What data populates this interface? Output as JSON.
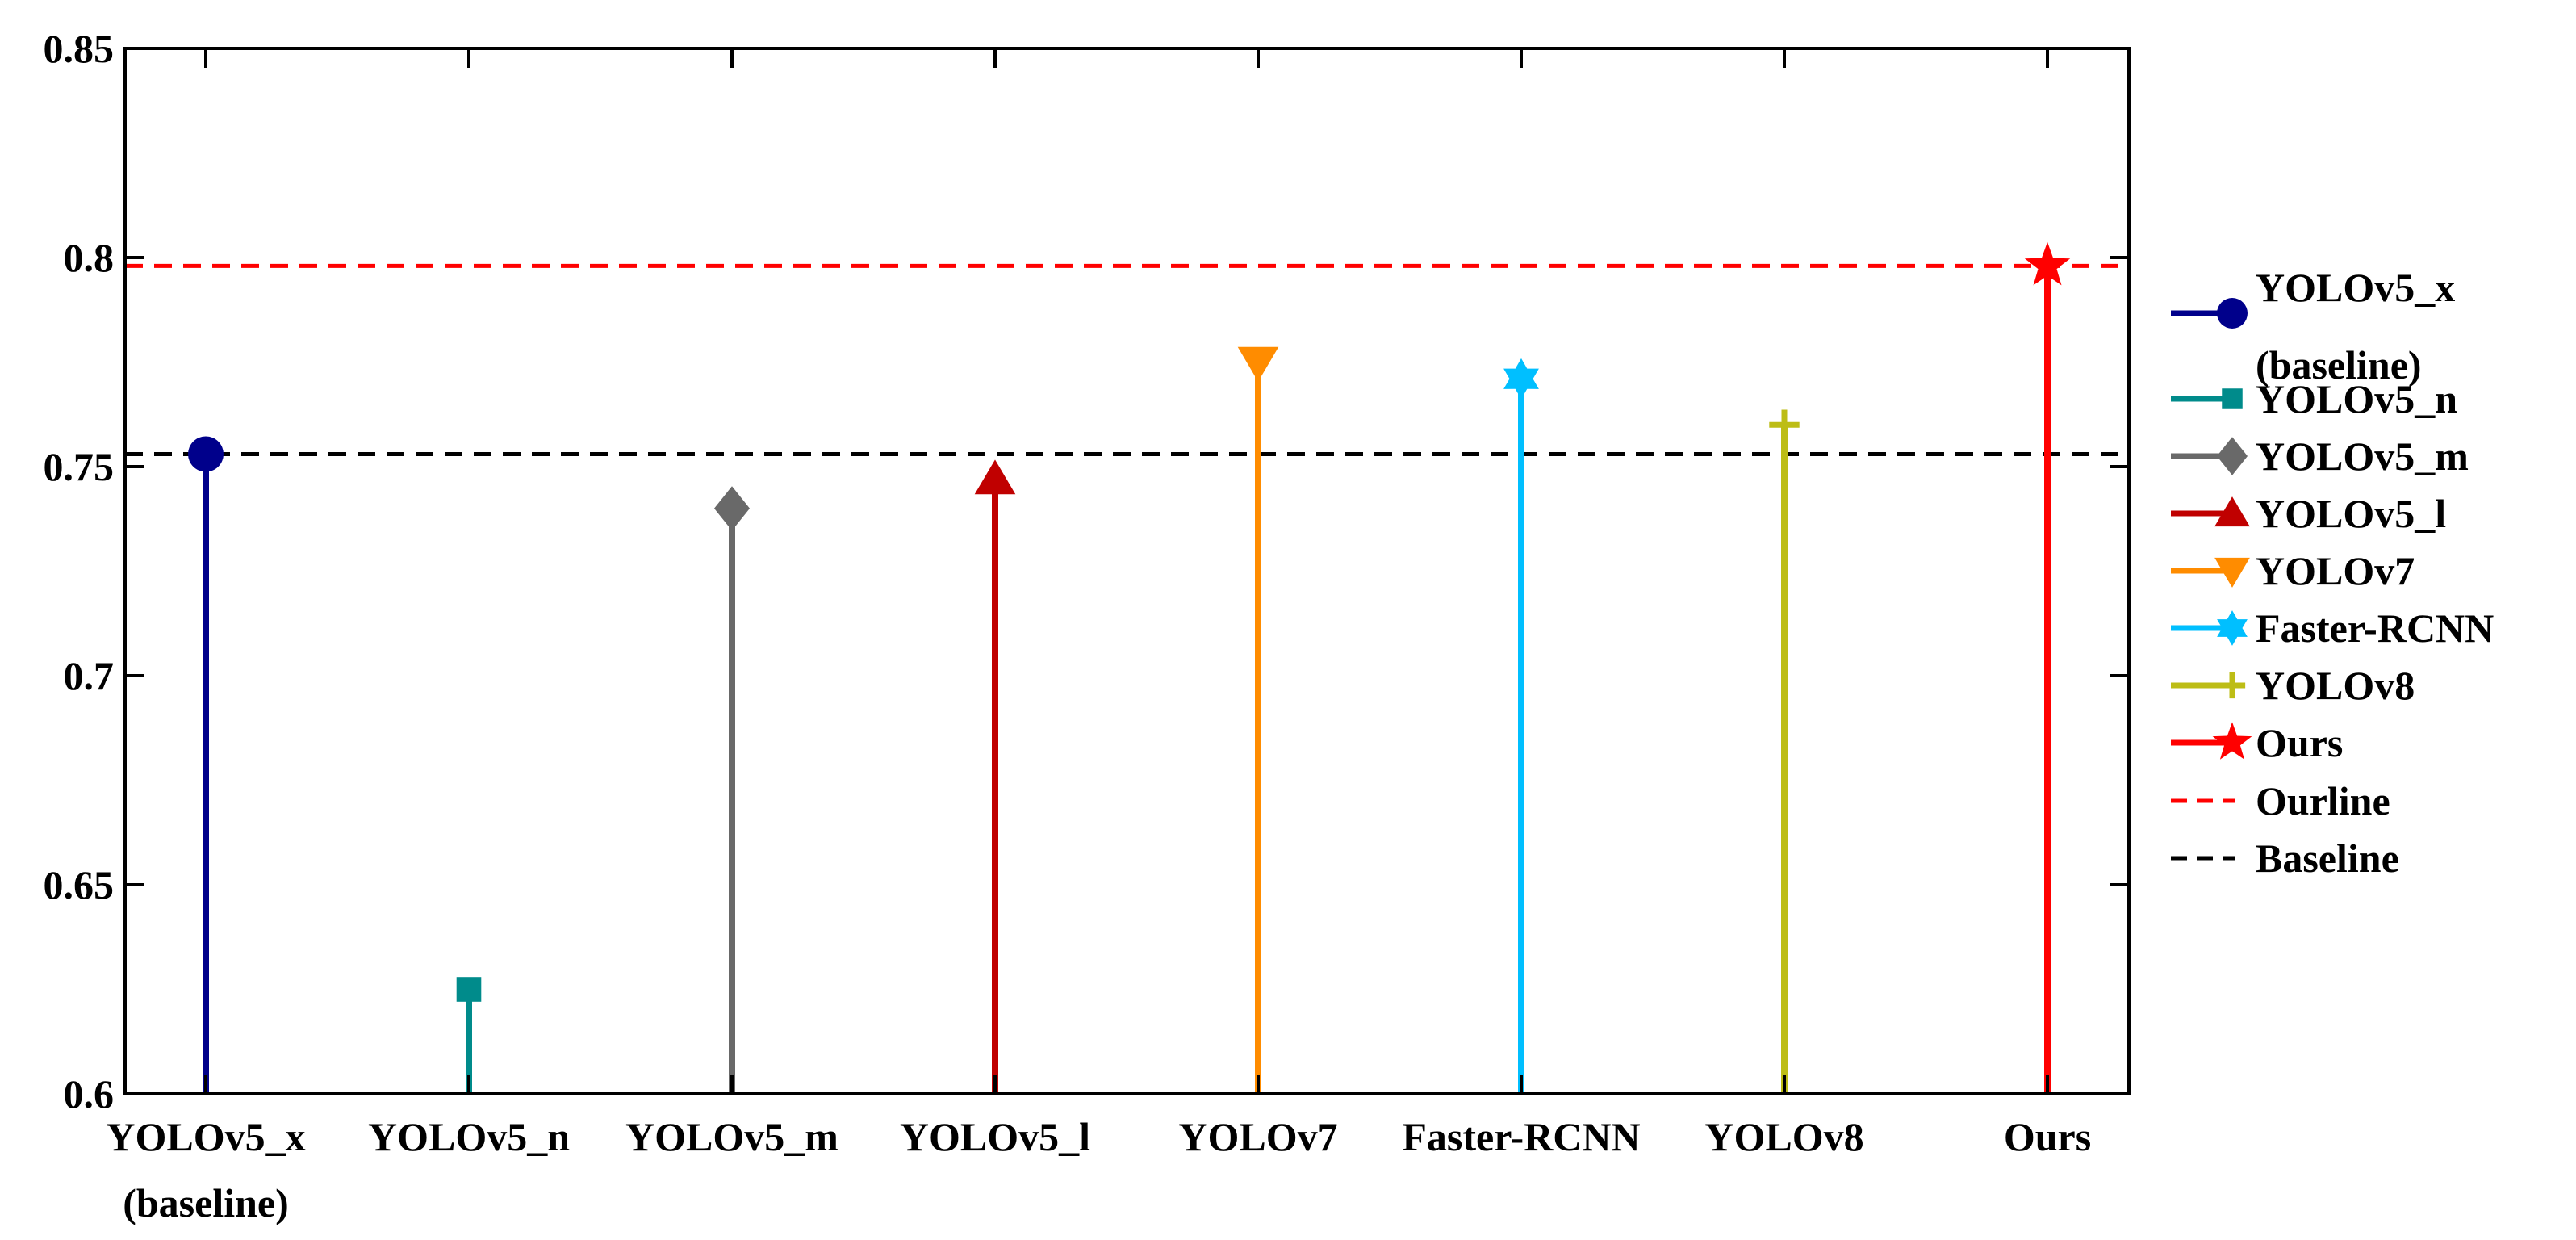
{
  "chart_data": {
    "type": "stem",
    "title": "",
    "xlabel": "",
    "ylabel": "",
    "ylim": [
      0.6,
      0.85
    ],
    "yticks": [
      "0.6",
      "0.65",
      "0.7",
      "0.75",
      "0.8",
      "0.85"
    ],
    "grid": false,
    "legend_position": "right",
    "categories": [
      [
        "YOLOv5_x",
        "(baseline)"
      ],
      [
        "YOLOv5_n"
      ],
      [
        "YOLOv5_m"
      ],
      [
        "YOLOv5_l"
      ],
      [
        "YOLOv7"
      ],
      [
        "Faster-RCNN"
      ],
      [
        "YOLOv8"
      ],
      [
        "Ours"
      ]
    ],
    "series": [
      {
        "name": "YOLOv5_x",
        "name2": "(baseline)",
        "value": 0.753,
        "color": "#00008B",
        "marker": "circle"
      },
      {
        "name": "YOLOv5_n",
        "value": 0.625,
        "color": "#008B8B",
        "marker": "square"
      },
      {
        "name": "YOLOv5_m",
        "value": 0.74,
        "color": "#696969",
        "marker": "diamond"
      },
      {
        "name": "YOLOv5_l",
        "value": 0.747,
        "color": "#C00000",
        "marker": "triangle-up"
      },
      {
        "name": "YOLOv7",
        "value": 0.775,
        "color": "#FF8C00",
        "marker": "triangle-down"
      },
      {
        "name": "Faster-RCNN",
        "value": 0.771,
        "color": "#00BFFF",
        "marker": "hexagram"
      },
      {
        "name": "YOLOv8",
        "value": 0.76,
        "color": "#BDBD16",
        "marker": "plus"
      },
      {
        "name": "Ours",
        "value": 0.798,
        "color": "#FF0000",
        "marker": "star"
      }
    ],
    "reference_lines": [
      {
        "name": "Ourline",
        "value": 0.798,
        "color": "#FF0000",
        "style": "dashed"
      },
      {
        "name": "Baseline",
        "value": 0.753,
        "color": "#000000",
        "style": "dashed"
      }
    ]
  }
}
